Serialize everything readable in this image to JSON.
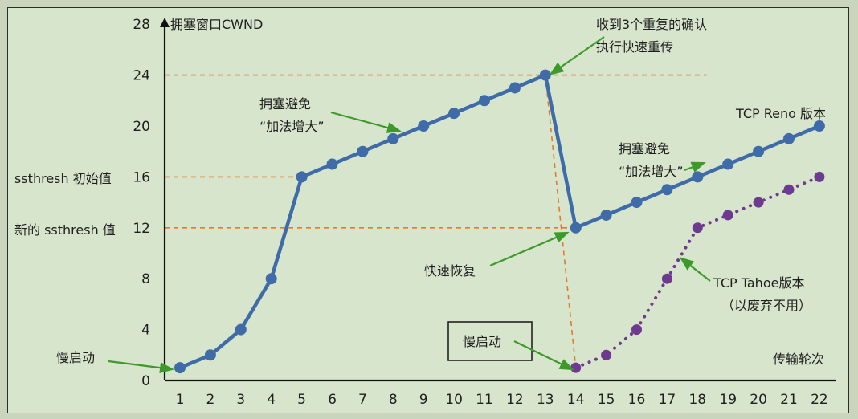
{
  "chart_data": {
    "type": "line",
    "title": "",
    "ylabel": "拥塞窗口CWND",
    "xlabel": "传输轮次",
    "ylim": [
      0,
      28
    ],
    "xlim": [
      1,
      22
    ],
    "y_ticks": [
      0,
      4,
      8,
      12,
      16,
      20,
      24,
      28
    ],
    "x_ticks": [
      1,
      2,
      3,
      4,
      5,
      6,
      7,
      8,
      9,
      10,
      11,
      12,
      13,
      14,
      15,
      16,
      17,
      18,
      19,
      20,
      21,
      22
    ],
    "y_labels_left": {
      "initial": "ssthresh 初始值",
      "new": "新的 ssthresh 值"
    },
    "reference_lines": [
      {
        "y": 24,
        "x_end": 18.3
      },
      {
        "y": 16,
        "x_end": 5
      },
      {
        "y": 12,
        "x_end": 14
      }
    ],
    "drop_line": {
      "from": [
        13,
        24
      ],
      "to": [
        14,
        1
      ]
    },
    "series": [
      {
        "name": "TCP Reno 版本",
        "style": "solid",
        "color": "#3f6ba8",
        "x": [
          1,
          2,
          3,
          4,
          5,
          6,
          7,
          8,
          9,
          10,
          11,
          12,
          13,
          14,
          15,
          16,
          17,
          18,
          19,
          20,
          21,
          22
        ],
        "values": [
          1,
          2,
          4,
          8,
          16,
          17,
          18,
          19,
          20,
          21,
          22,
          23,
          24,
          12,
          13,
          14,
          15,
          16,
          17,
          18,
          19,
          20
        ]
      },
      {
        "name": "TCP Tahoe版本",
        "style": "dotted",
        "color": "#6e3a8f",
        "x": [
          14,
          15,
          16,
          17,
          18,
          19,
          20,
          21,
          22
        ],
        "values": [
          1,
          2,
          4,
          8,
          12,
          13,
          14,
          15,
          16
        ]
      }
    ],
    "annotations": [
      {
        "id": "slow-start-left",
        "lines": [
          "慢启动"
        ]
      },
      {
        "id": "congestion-avoid-1",
        "lines": [
          "拥塞避免",
          "“加法增大”"
        ]
      },
      {
        "id": "three-dup-ack",
        "lines": [
          "收到3个重复的确认",
          "执行快速重传"
        ]
      },
      {
        "id": "reno-version",
        "lines": [
          "TCP Reno 版本"
        ]
      },
      {
        "id": "congestion-avoid-2",
        "lines": [
          "拥塞避免",
          "“加法增大”"
        ]
      },
      {
        "id": "fast-recovery",
        "lines": [
          "快速恢复"
        ]
      },
      {
        "id": "tahoe-version",
        "lines": [
          "TCP Tahoe版本",
          "（以废弃不用）"
        ]
      },
      {
        "id": "slow-start-boxed",
        "lines": [
          "慢启动"
        ]
      }
    ],
    "colors": {
      "reno": "#3f6ba8",
      "tahoe": "#6e3a8f",
      "reference": "#e07b2e",
      "arrow": "#3d9a2a",
      "axis": "#111111"
    }
  }
}
